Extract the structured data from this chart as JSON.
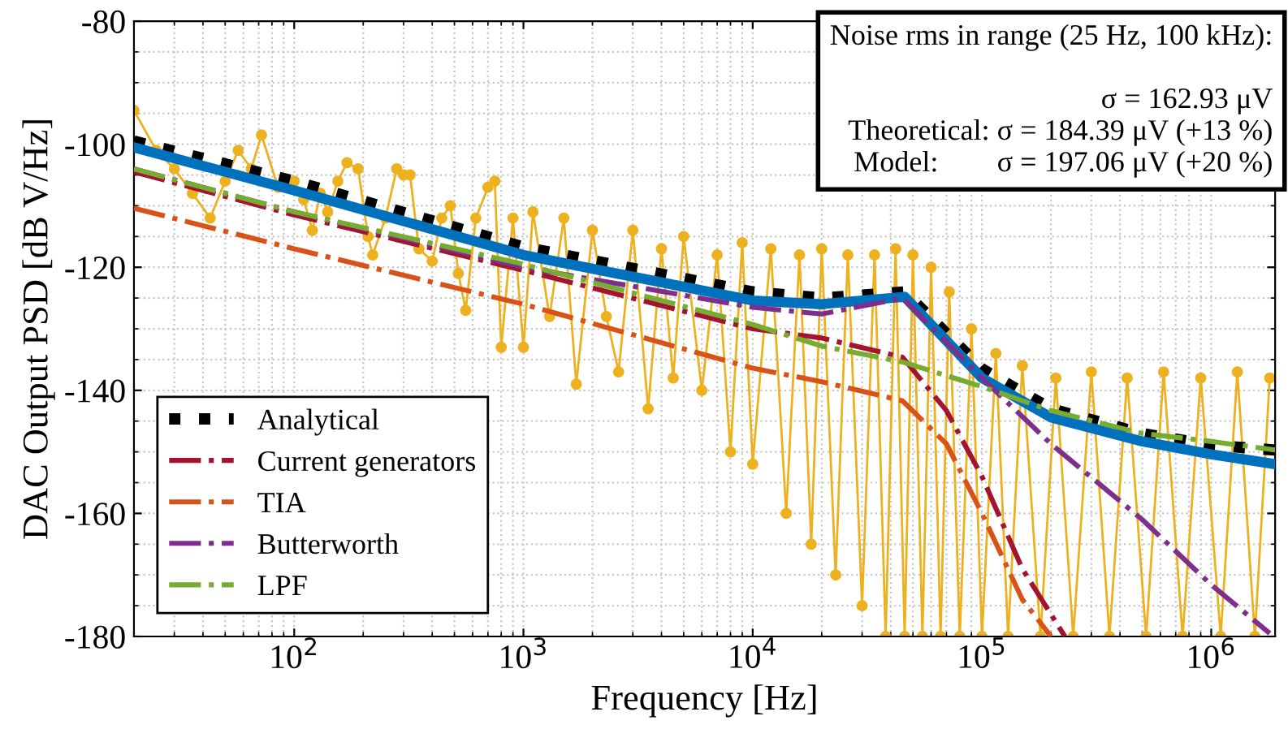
{
  "chart_data": {
    "type": "line",
    "xlabel": "Frequency [Hz]",
    "ylabel": "DAC Output PSD [dB V/Hz]",
    "log": "x",
    "xlim": [
      20,
      1900000
    ],
    "ylim": [
      -180,
      -80
    ],
    "xticks": [
      {
        "value": 100,
        "label": "10$^{2}$"
      },
      {
        "value": 1000,
        "label": "10$^{3}$"
      },
      {
        "value": 10000,
        "label": "10$^{4}$"
      },
      {
        "value": 100000,
        "label": "10$^{5}$"
      },
      {
        "value": 1000000,
        "label": "10$^{6}$"
      }
    ],
    "yticks": [
      -180,
      -160,
      -140,
      -120,
      -100,
      -80
    ],
    "grid": true,
    "legend": "bottom left",
    "annotations": [
      "Noise rms in range (25 Hz, 100 kHz):",
      "σ = 162.93 μV",
      "Theoretical: σ = 184.39 μV (+13 %)",
      "Model:        σ = 197.06 μV (+20 %)"
    ],
    "series": [
      {
        "color": "#edb120",
        "marker": "circle",
        "line_style": "solid",
        "x": [
          20,
          25,
          30,
          36,
          43,
          50,
          57,
          65,
          72,
          85,
          100,
          110,
          120,
          130,
          140,
          155,
          170,
          190,
          210,
          220,
          250,
          280,
          300,
          320,
          350,
          400,
          440,
          480,
          520,
          560,
          620,
          700,
          750,
          800,
          900,
          1000,
          1100,
          1300,
          1500,
          1700,
          2000,
          2300,
          2600,
          3000,
          3500,
          4000,
          4500,
          5000,
          6000,
          7000,
          8000,
          9000,
          10000,
          12000,
          14000,
          16000,
          18000,
          20000,
          23000,
          26000,
          30000,
          34000,
          38000,
          42000,
          46000,
          50000,
          55000,
          60000,
          66000,
          72000,
          80000,
          90000,
          100000,
          115000,
          130000,
          150000,
          180000,
          210000,
          250000,
          300000,
          360000,
          430000,
          520000,
          620000,
          750000,
          900000,
          1100000,
          1300000,
          1550000,
          1800000
        ],
        "values": [
          -94.5,
          -101,
          -104,
          -108,
          -112,
          -106,
          -101,
          -104,
          -98.5,
          -107,
          -106,
          -109,
          -114,
          -108,
          -111,
          -106,
          -103,
          -104,
          -115,
          -118,
          -112,
          -104,
          -105,
          -105,
          -117,
          -119,
          -112,
          -110,
          -121,
          -127,
          -112,
          -107,
          -106,
          -133,
          -112,
          -133,
          -111,
          -128,
          -112,
          -139,
          -114,
          -128,
          -137,
          -114,
          -143,
          -117,
          -138,
          -115,
          -140,
          -118,
          -150,
          -116,
          -152,
          -117,
          -160,
          -118,
          -165,
          -117,
          -170,
          -118,
          -175,
          -118,
          -180,
          -117,
          -180,
          -118,
          -180,
          -120,
          -180,
          -124,
          -180,
          -130,
          -180,
          -134,
          -180,
          -136,
          -180,
          -138,
          -180,
          -137,
          -180,
          -138,
          -180,
          -137,
          -180,
          -138,
          -180,
          -137,
          -180,
          -138
        ]
      },
      {
        "name": "Analytical",
        "color": "#000000",
        "line_style": "dotted",
        "x": [
          20,
          100,
          1000,
          10000,
          20000,
          46000,
          100000,
          200000,
          500000,
          1000000,
          1900000
        ],
        "values": [
          -99.5,
          -106,
          -116.7,
          -124,
          -125,
          -124,
          -136.5,
          -143,
          -147,
          -148.9,
          -149.7
        ]
      },
      {
        "color": "#0072bd",
        "line_style": "solid",
        "x": [
          20,
          100,
          1000,
          10000,
          20000,
          46000,
          100000,
          200000,
          500000,
          1000000,
          1900000
        ],
        "values": [
          -100.5,
          -107.5,
          -118,
          -125.4,
          -126,
          -124.8,
          -138,
          -144.4,
          -148.3,
          -150.4,
          -152
        ]
      },
      {
        "name": "Current generators",
        "color": "#a2142f",
        "line_style": "dashdot",
        "x": [
          20,
          100,
          1000,
          10000,
          20000,
          45000,
          70000,
          100000,
          150000,
          230000
        ],
        "values": [
          -104.5,
          -111.5,
          -120.5,
          -130,
          -131.5,
          -134.6,
          -143.3,
          -154,
          -169,
          -180
        ]
      },
      {
        "name": "TIA",
        "color": "#d95319",
        "line_style": "dashdot",
        "x": [
          20,
          100,
          1000,
          10000,
          20000,
          45000,
          70000,
          100000,
          150000,
          200000
        ],
        "values": [
          -110.4,
          -117,
          -126,
          -136.4,
          -138.6,
          -141.7,
          -148.7,
          -160,
          -174,
          -180
        ]
      },
      {
        "name": "Butterworth",
        "color": "#7e2f8e",
        "line_style": "dashdot",
        "x": [
          20,
          100,
          1000,
          10000,
          20000,
          45000,
          100000,
          200000,
          500000,
          1000000,
          1800000
        ],
        "values": [
          -104,
          -111,
          -120,
          -126.5,
          -127.6,
          -125,
          -138,
          -148.7,
          -161,
          -171.6,
          -179.5
        ]
      },
      {
        "name": "LPF",
        "color": "#77ac30",
        "line_style": "dashdot",
        "x": [
          20,
          100,
          1000,
          10000,
          20000,
          45000,
          100000,
          200000,
          500000,
          1000000,
          1900000
        ],
        "values": [
          -104,
          -111,
          -119.5,
          -129.3,
          -132.8,
          -135.4,
          -139.4,
          -143.3,
          -147,
          -148.3,
          -149.7
        ]
      }
    ]
  }
}
